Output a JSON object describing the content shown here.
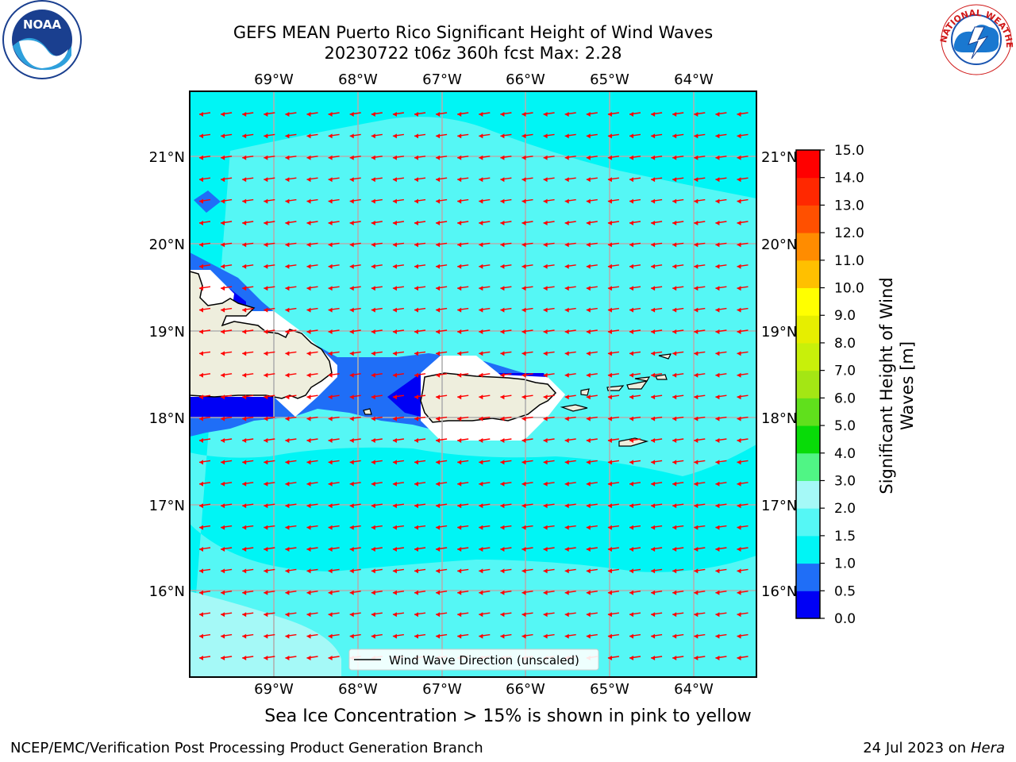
{
  "title_line1": "GEFS MEAN Puerto Rico Significant Height of Wind Waves",
  "title_line2": "20230722 t06z 360h fcst   Max: 2.28",
  "subtitle": "Sea Ice Concentration > 15% is shown in pink to yellow",
  "footer_left": "NCEP/EMC/Verification Post Processing Product Generation Branch",
  "footer_date": "24 Jul 2023 on ",
  "footer_host": "Hera",
  "legend_label": "Wind Wave Direction (unscaled)",
  "lon_labels": [
    "69°W",
    "68°W",
    "67°W",
    "66°W",
    "65°W",
    "64°W"
  ],
  "lat_labels": [
    "21°N",
    "20°N",
    "19°N",
    "18°N",
    "17°N",
    "16°N"
  ],
  "colorbar": {
    "label_line1": "Significant Height of Wind",
    "label_line2": "Waves [m]",
    "ticks": [
      "0.0",
      "0.5",
      "1.0",
      "1.5",
      "2.0",
      "3.0",
      "4.0",
      "5.0",
      "6.0",
      "7.0",
      "8.0",
      "9.0",
      "10.0",
      "11.0",
      "12.0",
      "13.0",
      "14.0",
      "15.0"
    ],
    "colors": [
      "#0000f5",
      "#1f6ef7",
      "#00f5f5",
      "#55f7f5",
      "#a5f9f7",
      "#50f585",
      "#08db08",
      "#60e01c",
      "#a4e614",
      "#c8f00a",
      "#e6ee00",
      "#ffff00",
      "#ffc000",
      "#ff8c00",
      "#ff5000",
      "#ff2800",
      "#ff0000"
    ]
  },
  "colors": {
    "land": "#eeeedd",
    "arrow": "#ff0000",
    "grid": "#b0b0b0"
  },
  "logos": {
    "noaa_text": "NOAA",
    "nws_text": "NATIONAL WEATHER SERVICE"
  }
}
